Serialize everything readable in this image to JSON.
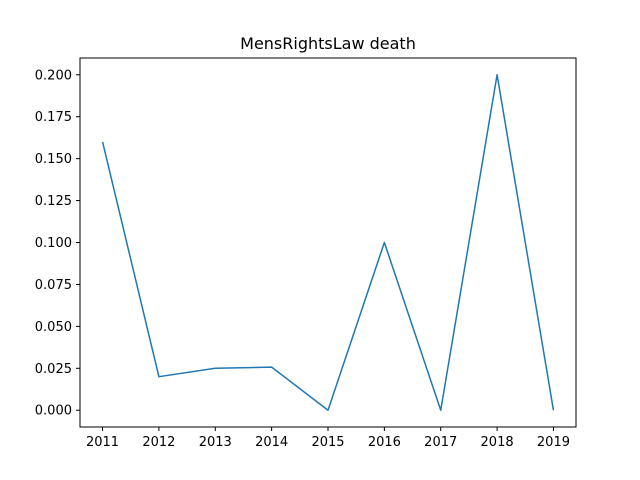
{
  "chart_data": {
    "type": "line",
    "title": "MensRightsLaw death",
    "xlabel": "",
    "ylabel": "",
    "x": [
      2011,
      2012,
      2013,
      2014,
      2015,
      2016,
      2017,
      2018,
      2019
    ],
    "x_tick_labels": [
      "2011",
      "2012",
      "2013",
      "2014",
      "2015",
      "2016",
      "2017",
      "2018",
      "2019"
    ],
    "series": [
      {
        "values": [
          0.16,
          0.02,
          0.025,
          0.0257,
          0.0,
          0.1,
          0.0,
          0.2,
          0.0
        ]
      }
    ],
    "y_ticks": [
      0.0,
      0.025,
      0.05,
      0.075,
      0.1,
      0.125,
      0.15,
      0.175,
      0.2
    ],
    "y_tick_labels": [
      "0.000",
      "0.025",
      "0.050",
      "0.075",
      "0.100",
      "0.125",
      "0.150",
      "0.175",
      "0.200"
    ],
    "xlim": [
      2010.6,
      2019.4
    ],
    "ylim": [
      -0.01,
      0.21
    ],
    "grid": false,
    "colors": {
      "line": "#1f77b4"
    }
  }
}
